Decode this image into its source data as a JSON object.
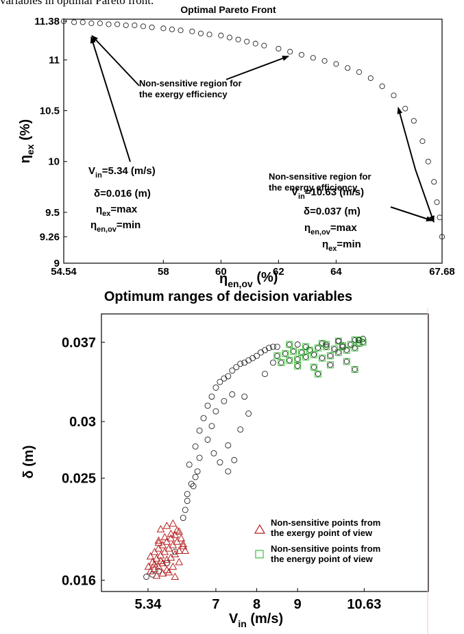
{
  "caption_fragment": "variables in optimal Pareto front.",
  "colors": {
    "pareto_marker": "#222222",
    "exergy_marker": "#b81c1c",
    "energy_marker": "#3cbf3c",
    "black_marker": "#222222",
    "axis": "#000000"
  },
  "chart_data": [
    {
      "type": "scatter",
      "title": "Optimal Pareto Front",
      "xlabel": "η_en,ov (%)",
      "ylabel": "η_ex (%)",
      "xlim": [
        54.54,
        67.68
      ],
      "ylim": [
        9.0,
        11.4
      ],
      "xticks": [
        54.54,
        58,
        60,
        62,
        64,
        67.68
      ],
      "xtick_labels": [
        "54.54",
        "58",
        "60",
        "62",
        "64",
        "67.68"
      ],
      "yticks": [
        9.0,
        9.26,
        9.5,
        10.0,
        10.5,
        11.0,
        11.38
      ],
      "ytick_labels": [
        "9",
        "9.26",
        "9.5",
        "10",
        "10.5",
        "11",
        "11.38"
      ],
      "grid": false,
      "series": [
        {
          "marker": "circle",
          "x": [
            54.54,
            54.9,
            55.2,
            55.5,
            55.8,
            56.1,
            56.4,
            56.7,
            57.0,
            57.3,
            57.6,
            58.0,
            58.3,
            58.6,
            59.0,
            59.3,
            59.6,
            60.0,
            60.3,
            60.6,
            60.9,
            61.2,
            61.5,
            62.0,
            62.4,
            62.8,
            63.2,
            63.6,
            64.0,
            64.4,
            64.8,
            65.2,
            65.6,
            66.0,
            66.4,
            66.7,
            67.0,
            67.2,
            67.4,
            67.5,
            67.6,
            67.68
          ],
          "y": [
            11.38,
            11.37,
            11.37,
            11.36,
            11.36,
            11.35,
            11.35,
            11.34,
            11.34,
            11.33,
            11.32,
            11.31,
            11.3,
            11.29,
            11.28,
            11.26,
            11.25,
            11.24,
            11.22,
            11.2,
            11.18,
            11.16,
            11.14,
            11.11,
            11.08,
            11.05,
            11.02,
            10.99,
            10.96,
            10.92,
            10.88,
            10.82,
            10.74,
            10.65,
            10.52,
            10.4,
            10.2,
            10.0,
            9.8,
            9.6,
            9.45,
            9.26
          ]
        }
      ],
      "annotations": [
        {
          "lines": [
            "Non-sensitive region for",
            "the exergy efficiency"
          ]
        },
        {
          "lines": [
            "Non-sensitive region for",
            "the energy efficiency"
          ]
        }
      ],
      "point_labels": [
        {
          "vin_label": "V",
          "vin_sub": "in",
          "vin_value": "=5.34 (m/s)",
          "delta": "δ=0.016 (m)",
          "line3_pre": "η",
          "line3_sub": "ex",
          "line3_post": "=max",
          "line4_pre": "η",
          "line4_sub": "en,ov",
          "line4_post": "=min"
        },
        {
          "vin_label": "V",
          "vin_sub": "in",
          "vin_value": "=10.63 (m/s)",
          "delta": "δ=0.037 (m)",
          "line3_pre": "η",
          "line3_sub": "en,ov",
          "line3_post": "=max",
          "line4_pre": "η",
          "line4_sub": "ex",
          "line4_post": "=min"
        }
      ],
      "xlabel_parts": {
        "pre": "η",
        "sub": "en,ov",
        "post": " (%)"
      },
      "ylabel_parts": {
        "pre": "η",
        "sub": "ex",
        "post": " (%)"
      }
    },
    {
      "type": "scatter",
      "title": "Optimum ranges of decision variables",
      "xlabel": "V_in (m/s)",
      "ylabel": "δ (m)",
      "xlim": [
        4.2,
        12.2
      ],
      "ylim": [
        0.015,
        0.0395
      ],
      "xticks": [
        5.34,
        7,
        8,
        9,
        10.63
      ],
      "xtick_labels": [
        "5.34",
        "7",
        "8",
        "9",
        "10.63"
      ],
      "yticks": [
        0.016,
        0.025,
        0.03,
        0.037
      ],
      "ytick_labels": [
        "0.016",
        "0.025",
        "0.03",
        "0.037"
      ],
      "grid": false,
      "legend_position": "lower-right",
      "xlabel_parts": {
        "pre": "V",
        "sub": "in",
        "post": " (m/s)"
      },
      "series": [
        {
          "name": "Non-sensitive points from the exergy point of view",
          "legend_lines": [
            "Non-sensitive points from",
            "the exergy point of view"
          ],
          "marker": "triangle",
          "x": [
            5.4,
            5.5,
            5.6,
            5.7,
            5.8,
            5.9,
            6.0,
            6.1,
            6.2,
            5.45,
            5.55,
            5.65,
            5.75,
            5.85,
            5.95,
            6.05,
            6.15,
            5.5,
            5.6,
            5.7,
            5.8,
            5.9,
            6.0,
            6.1,
            5.35,
            5.5,
            5.65,
            5.8,
            5.95,
            6.1,
            5.6,
            5.75,
            5.9,
            6.05,
            6.2,
            5.55,
            5.7,
            5.85,
            6.0,
            5.65,
            5.8,
            5.95,
            6.25,
            5.4,
            5.6
          ],
          "y": [
            0.0168,
            0.017,
            0.0172,
            0.0175,
            0.0178,
            0.018,
            0.0183,
            0.0186,
            0.019,
            0.0176,
            0.0179,
            0.0182,
            0.0185,
            0.0188,
            0.0191,
            0.0194,
            0.0197,
            0.0185,
            0.0188,
            0.0191,
            0.0194,
            0.0197,
            0.02,
            0.0203,
            0.0172,
            0.0174,
            0.0177,
            0.0169,
            0.0172,
            0.0176,
            0.0195,
            0.0198,
            0.0201,
            0.0204,
            0.0192,
            0.0164,
            0.0166,
            0.0167,
            0.0163,
            0.0205,
            0.0208,
            0.021,
            0.0186,
            0.0181,
            0.0193
          ]
        },
        {
          "name": "Non-sensitive points from the energy point of view",
          "legend_lines": [
            "Non-sensitive points from",
            "the energy point of view"
          ],
          "marker": "square",
          "x": [
            8.5,
            8.7,
            8.9,
            9.1,
            9.3,
            9.5,
            9.7,
            9.9,
            10.1,
            10.3,
            10.5,
            10.6,
            8.6,
            8.8,
            9.0,
            9.2,
            9.4,
            9.6,
            9.8,
            10.0,
            10.2,
            10.4,
            9.0,
            9.4,
            9.8,
            10.2,
            8.8,
            9.2,
            9.6,
            10.0,
            10.4,
            9.5,
            10.4,
            9.7,
            10.5,
            10.1
          ],
          "y": [
            0.0358,
            0.036,
            0.0362,
            0.0361,
            0.0363,
            0.0365,
            0.0366,
            0.0364,
            0.0367,
            0.0368,
            0.0369,
            0.037,
            0.0352,
            0.0354,
            0.0355,
            0.0357,
            0.0359,
            0.0356,
            0.0358,
            0.0361,
            0.0363,
            0.0365,
            0.0349,
            0.0348,
            0.035,
            0.0353,
            0.0368,
            0.0366,
            0.0369,
            0.0371,
            0.0372,
            0.0342,
            0.0346,
            0.0368,
            0.0372,
            0.0366
          ]
        },
        {
          "marker": "circle",
          "x": [
            5.3,
            5.45,
            5.6,
            5.8,
            6.0,
            6.2,
            6.3,
            6.4,
            6.35,
            6.5,
            6.6,
            6.7,
            6.8,
            6.9,
            7.0,
            7.1,
            7.2,
            7.3,
            7.4,
            7.5,
            7.6,
            7.7,
            7.8,
            7.9,
            8.0,
            8.1,
            8.2,
            8.3,
            8.4,
            6.45,
            6.55,
            6.6,
            6.8,
            6.9,
            7.0,
            7.2,
            7.4,
            6.25,
            6.3,
            6.5,
            7.1,
            7.3,
            7.6,
            7.8,
            8.2,
            8.4,
            7.45,
            7.3,
            6.95,
            8.5,
            9.0,
            10.0,
            10.5,
            10.6,
            7.7
          ],
          "y": [
            0.0163,
            0.0165,
            0.0168,
            0.0175,
            0.0185,
            0.0215,
            0.023,
            0.0245,
            0.0262,
            0.0278,
            0.0292,
            0.0303,
            0.0314,
            0.0322,
            0.033,
            0.0335,
            0.0338,
            0.034,
            0.0345,
            0.0348,
            0.0351,
            0.0352,
            0.0354,
            0.0356,
            0.0358,
            0.0361,
            0.0363,
            0.0365,
            0.0366,
            0.0243,
            0.0256,
            0.0268,
            0.0284,
            0.0296,
            0.0309,
            0.0318,
            0.0324,
            0.0222,
            0.0236,
            0.0251,
            0.0264,
            0.0279,
            0.0293,
            0.0307,
            0.0342,
            0.0352,
            0.0266,
            0.0256,
            0.0272,
            0.0366,
            0.0368,
            0.0371,
            0.0372,
            0.0373,
            0.0322
          ]
        }
      ]
    }
  ]
}
